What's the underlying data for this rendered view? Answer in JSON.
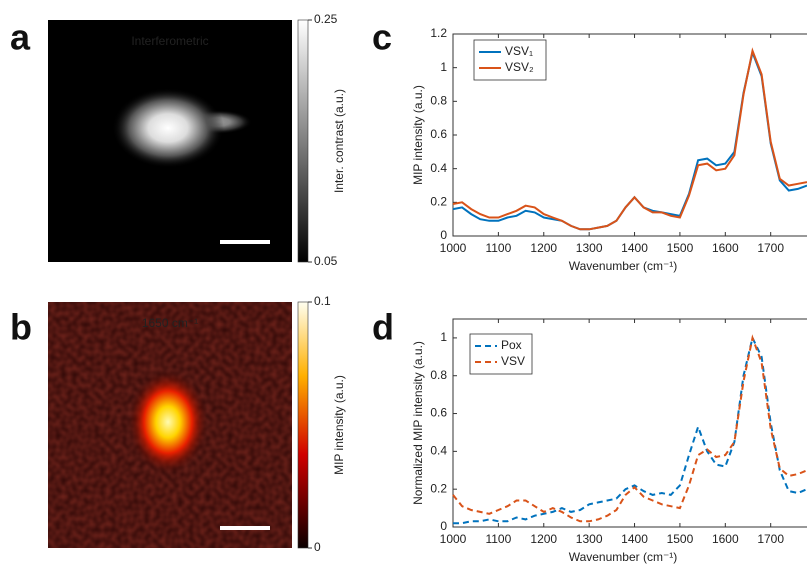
{
  "chart_data": [
    {
      "type": "image",
      "panel_label": "a",
      "title": "Interferometric",
      "colormap": "gray",
      "colorbar_label": "Inter. contrast (a.u.)",
      "clim": [
        0.05,
        0.25
      ],
      "cticks": [
        0.05,
        0.25
      ]
    },
    {
      "type": "image",
      "panel_label": "b",
      "title": "1650 cm⁻¹",
      "colormap": "hot",
      "colorbar_label": "MIP intensity (a.u.)",
      "clim": [
        0,
        0.1
      ],
      "cticks": [
        0,
        0.1
      ]
    },
    {
      "type": "line",
      "panel_label": "c",
      "x_label": "Wavenumber (cm⁻¹)",
      "y_label": "MIP intensity (a.u.)",
      "xlim": [
        1000,
        1780
      ],
      "ylim": [
        0,
        1.2
      ],
      "xticks": [
        1000,
        1100,
        1200,
        1300,
        1400,
        1500,
        1600,
        1700
      ],
      "yticks": [
        0,
        0.2,
        0.4,
        0.6,
        0.8,
        1,
        1.2
      ],
      "line_style": "solid",
      "x": [
        1000,
        1020,
        1040,
        1060,
        1080,
        1100,
        1120,
        1140,
        1160,
        1180,
        1200,
        1220,
        1240,
        1260,
        1280,
        1300,
        1320,
        1340,
        1360,
        1380,
        1400,
        1420,
        1440,
        1460,
        1480,
        1500,
        1520,
        1540,
        1560,
        1580,
        1600,
        1620,
        1640,
        1660,
        1680,
        1700,
        1720,
        1740,
        1760,
        1780
      ],
      "series": [
        {
          "name": "VSV₁",
          "color": "#0072bd",
          "values": [
            0.16,
            0.17,
            0.13,
            0.1,
            0.09,
            0.09,
            0.11,
            0.12,
            0.15,
            0.14,
            0.11,
            0.1,
            0.09,
            0.06,
            0.04,
            0.04,
            0.05,
            0.06,
            0.09,
            0.17,
            0.23,
            0.17,
            0.15,
            0.14,
            0.13,
            0.12,
            0.25,
            0.45,
            0.46,
            0.42,
            0.43,
            0.5,
            0.85,
            1.09,
            0.95,
            0.55,
            0.33,
            0.27,
            0.28,
            0.3
          ]
        },
        {
          "name": "VSV₂",
          "color": "#d95319",
          "values": [
            0.19,
            0.2,
            0.16,
            0.13,
            0.11,
            0.11,
            0.13,
            0.15,
            0.18,
            0.17,
            0.13,
            0.11,
            0.09,
            0.06,
            0.04,
            0.04,
            0.05,
            0.06,
            0.09,
            0.17,
            0.23,
            0.17,
            0.14,
            0.14,
            0.12,
            0.11,
            0.24,
            0.42,
            0.43,
            0.39,
            0.4,
            0.48,
            0.84,
            1.1,
            0.96,
            0.56,
            0.34,
            0.3,
            0.31,
            0.32
          ]
        }
      ]
    },
    {
      "type": "line",
      "panel_label": "d",
      "x_label": "Wavenumber (cm⁻¹)",
      "y_label": "Normalized MIP intensity (a.u.)",
      "xlim": [
        1000,
        1780
      ],
      "ylim": [
        0,
        1.1
      ],
      "xticks": [
        1000,
        1100,
        1200,
        1300,
        1400,
        1500,
        1600,
        1700
      ],
      "yticks": [
        0,
        0.2,
        0.4,
        0.6,
        0.8,
        1
      ],
      "line_style": "dashed",
      "x": [
        1000,
        1020,
        1040,
        1060,
        1080,
        1100,
        1120,
        1140,
        1160,
        1180,
        1200,
        1220,
        1240,
        1260,
        1280,
        1300,
        1320,
        1340,
        1360,
        1380,
        1400,
        1420,
        1440,
        1460,
        1480,
        1500,
        1520,
        1540,
        1560,
        1580,
        1600,
        1620,
        1640,
        1660,
        1680,
        1700,
        1720,
        1740,
        1760,
        1780
      ],
      "series": [
        {
          "name": "Pox",
          "color": "#0072bd",
          "values": [
            0.02,
            0.02,
            0.03,
            0.03,
            0.04,
            0.03,
            0.03,
            0.05,
            0.04,
            0.06,
            0.07,
            0.08,
            0.1,
            0.08,
            0.09,
            0.12,
            0.13,
            0.14,
            0.15,
            0.2,
            0.22,
            0.19,
            0.17,
            0.18,
            0.17,
            0.22,
            0.38,
            0.53,
            0.4,
            0.33,
            0.32,
            0.45,
            0.8,
            1.0,
            0.9,
            0.55,
            0.3,
            0.19,
            0.18,
            0.2
          ]
        },
        {
          "name": "VSV",
          "color": "#d95319",
          "values": [
            0.17,
            0.11,
            0.09,
            0.08,
            0.07,
            0.09,
            0.11,
            0.14,
            0.14,
            0.11,
            0.08,
            0.1,
            0.08,
            0.05,
            0.03,
            0.03,
            0.04,
            0.06,
            0.09,
            0.17,
            0.21,
            0.16,
            0.14,
            0.12,
            0.11,
            0.1,
            0.22,
            0.38,
            0.41,
            0.37,
            0.38,
            0.45,
            0.77,
            1.0,
            0.87,
            0.52,
            0.31,
            0.27,
            0.28,
            0.3
          ]
        }
      ]
    }
  ]
}
